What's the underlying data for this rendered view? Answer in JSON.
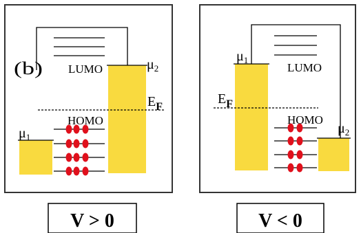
{
  "colors": {
    "electrode_fill": "#F9DA3F",
    "electron": "#E0101C",
    "frame": "#333333",
    "line": "#000000"
  },
  "left_panel": {
    "panel_label": "(b)",
    "lumo_label": "LUMO",
    "homo_label": "HOMO",
    "fermi_label": "E",
    "fermi_subscript": "F",
    "mu_left": "μ",
    "mu_left_subscript": "1",
    "mu_right": "μ",
    "mu_right_subscript": "2",
    "bias_caption": "V > 0"
  },
  "right_panel": {
    "lumo_label": "LUMO",
    "homo_label": "HOMO",
    "fermi_label": "E",
    "fermi_subscript": "F",
    "mu_left": "μ",
    "mu_left_subscript": "1",
    "mu_right": "μ",
    "mu_right_subscript": "2",
    "bias_caption": "V < 0"
  }
}
